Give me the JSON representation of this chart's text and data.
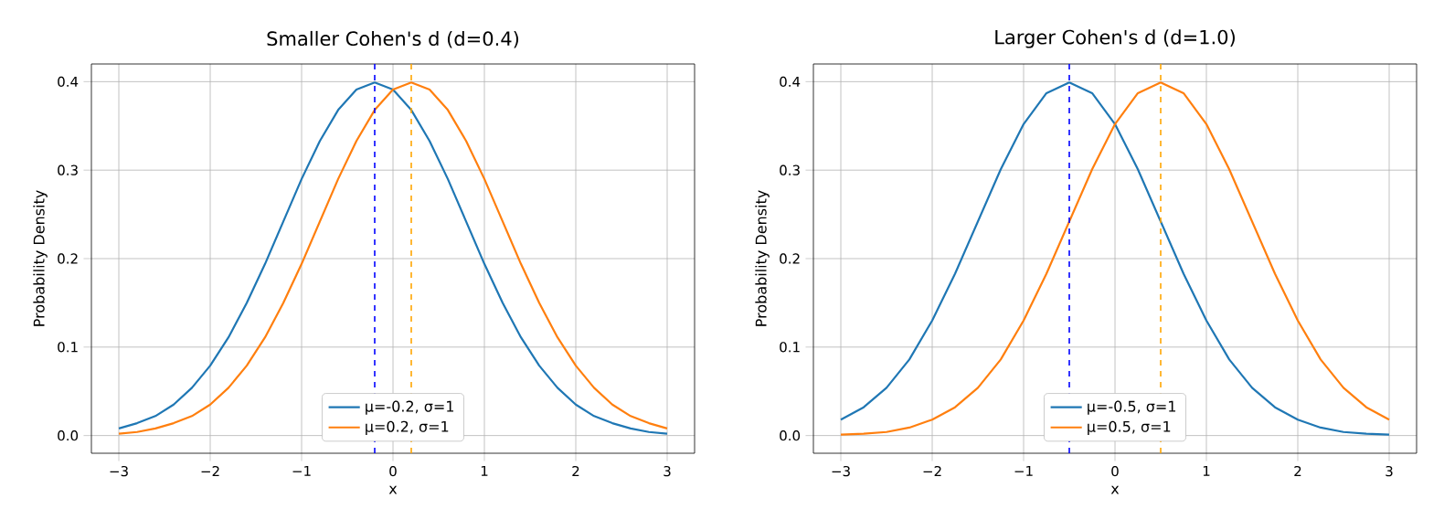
{
  "chart_data": [
    {
      "type": "line",
      "title": "Smaller Cohen's d (d=0.4)",
      "xlabel": "x",
      "ylabel": "Probability Density",
      "xlim": [
        -3.3,
        3.3
      ],
      "ylim": [
        -0.02,
        0.42
      ],
      "xticks": [
        {
          "value": -3,
          "label": "−3"
        },
        {
          "value": -2,
          "label": "−2"
        },
        {
          "value": -1,
          "label": "−1"
        },
        0,
        1,
        2,
        3
      ],
      "yticks": [
        {
          "value": 0,
          "label": "0.0"
        },
        0.1,
        0.2,
        0.3,
        0.4
      ],
      "grid": true,
      "legend": "bottom",
      "line_style": "solid",
      "marker": "none",
      "x": [
        -3.0,
        -2.8,
        -2.6,
        -2.4,
        -2.2,
        -2.0,
        -1.8,
        -1.6,
        -1.4,
        -1.2,
        -1.0,
        -0.8,
        -0.6,
        -0.4,
        -0.2,
        0.0,
        0.2,
        0.4,
        0.6,
        0.8,
        1.0,
        1.2,
        1.4,
        1.6,
        1.8,
        2.0,
        2.2,
        2.4,
        2.6,
        2.8,
        3.0
      ],
      "series": [
        {
          "name": "μ=-0.2, σ=1",
          "color": "#1f77b4",
          "values": [
            0.008,
            0.014,
            0.022,
            0.035,
            0.054,
            0.079,
            0.111,
            0.15,
            0.194,
            0.242,
            0.29,
            0.333,
            0.368,
            0.391,
            0.399,
            0.391,
            0.368,
            0.333,
            0.29,
            0.242,
            0.194,
            0.15,
            0.111,
            0.079,
            0.054,
            0.035,
            0.022,
            0.014,
            0.008,
            0.004,
            0.002
          ]
        },
        {
          "name": "μ=0.2, σ=1",
          "color": "#ff7f0e",
          "values": [
            0.002,
            0.004,
            0.008,
            0.014,
            0.022,
            0.035,
            0.054,
            0.079,
            0.111,
            0.15,
            0.194,
            0.242,
            0.29,
            0.333,
            0.368,
            0.391,
            0.399,
            0.391,
            0.368,
            0.333,
            0.29,
            0.242,
            0.194,
            0.15,
            0.111,
            0.079,
            0.054,
            0.035,
            0.022,
            0.014,
            0.008
          ]
        }
      ],
      "ref_lines": [
        {
          "axis": "x",
          "value": -0.2,
          "color": "#0000ff",
          "line_style": "dashed"
        },
        {
          "axis": "x",
          "value": 0.2,
          "color": "#ffa500",
          "line_style": "dashed"
        }
      ]
    },
    {
      "type": "line",
      "title": "Larger Cohen's d (d=1.0)",
      "xlabel": "x",
      "ylabel": "Probability Density",
      "xlim": [
        -3.3,
        3.3
      ],
      "ylim": [
        -0.02,
        0.42
      ],
      "xticks": [
        {
          "value": -3,
          "label": "−3"
        },
        {
          "value": -2,
          "label": "−2"
        },
        {
          "value": -1,
          "label": "−1"
        },
        0,
        1,
        2,
        3
      ],
      "yticks": [
        {
          "value": 0,
          "label": "0.0"
        },
        0.1,
        0.2,
        0.3,
        0.4
      ],
      "grid": true,
      "legend": "bottom",
      "line_style": "solid",
      "marker": "none",
      "x": [
        -3.0,
        -2.75,
        -2.5,
        -2.25,
        -2.0,
        -1.75,
        -1.5,
        -1.25,
        -1.0,
        -0.75,
        -0.5,
        -0.25,
        0.0,
        0.25,
        0.5,
        0.75,
        1.0,
        1.25,
        1.5,
        1.75,
        2.0,
        2.25,
        2.5,
        2.75,
        3.0
      ],
      "series": [
        {
          "name": "μ=-0.5, σ=1",
          "color": "#1f77b4",
          "values": [
            0.018,
            0.032,
            0.054,
            0.086,
            0.13,
            0.183,
            0.242,
            0.301,
            0.352,
            0.387,
            0.399,
            0.387,
            0.352,
            0.301,
            0.242,
            0.183,
            0.13,
            0.086,
            0.054,
            0.032,
            0.018,
            0.009,
            0.004,
            0.002,
            0.001
          ]
        },
        {
          "name": "μ=0.5, σ=1",
          "color": "#ff7f0e",
          "values": [
            0.001,
            0.002,
            0.004,
            0.009,
            0.018,
            0.032,
            0.054,
            0.086,
            0.13,
            0.183,
            0.242,
            0.301,
            0.352,
            0.387,
            0.399,
            0.387,
            0.352,
            0.301,
            0.242,
            0.183,
            0.13,
            0.086,
            0.054,
            0.032,
            0.018
          ]
        }
      ],
      "ref_lines": [
        {
          "axis": "x",
          "value": -0.5,
          "color": "#0000ff",
          "line_style": "dashed"
        },
        {
          "axis": "x",
          "value": 0.5,
          "color": "#ffa500",
          "line_style": "dashed"
        }
      ]
    }
  ]
}
